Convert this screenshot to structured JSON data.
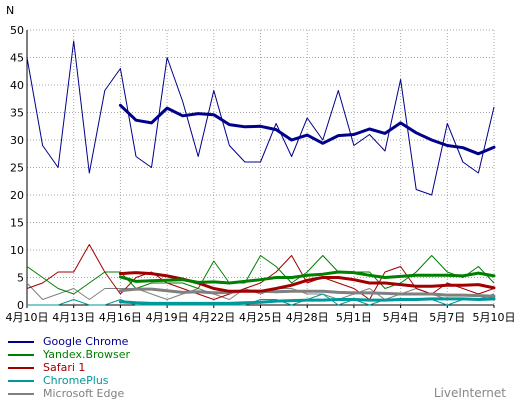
{
  "chart_data": {
    "type": "line",
    "ylabel": "N",
    "ylim": [
      0,
      50
    ],
    "yticks": [
      0,
      5,
      10,
      15,
      20,
      25,
      30,
      35,
      40,
      45,
      50
    ],
    "grid": true,
    "legend_position": "bottom-left",
    "x": [
      "4月10日",
      "4月11日",
      "4月12日",
      "4月13日",
      "4月14日",
      "4月15日",
      "4月16日",
      "4月17日",
      "4月18日",
      "4月19日",
      "4月20日",
      "4月21日",
      "4月22日",
      "4月23日",
      "4月24日",
      "4月25日",
      "4月26日",
      "4月27日",
      "4月28日",
      "4月29日",
      "4月30日",
      "5月1日",
      "5月2日",
      "5月3日",
      "5月4日",
      "5月5日",
      "5月6日",
      "5月7日",
      "5月8日",
      "5月9日",
      "5月10日"
    ],
    "xtick_labels": [
      "4月10日",
      "4月13日",
      "4月16日",
      "4月19日",
      "4月22日",
      "4月25日",
      "4月28日",
      "5月1日",
      "5月4日",
      "5月7日",
      "5月10日"
    ],
    "series": [
      {
        "name": "Google Chrome",
        "color": "#00008b",
        "values": [
          45,
          29,
          25,
          48,
          24,
          39,
          43,
          27,
          25,
          45,
          37,
          27,
          39,
          29,
          26,
          26,
          33,
          27,
          34,
          30,
          39,
          29,
          31,
          28,
          41,
          21,
          20,
          33,
          26,
          24,
          36
        ],
        "smoothed": [
          null,
          null,
          null,
          null,
          null,
          null,
          36.3,
          33.6,
          33.1,
          35.8,
          34.4,
          34.8,
          34.6,
          32.8,
          32.4,
          32.5,
          31.9,
          30.0,
          30.9,
          29.4,
          30.8,
          31.0,
          32.0,
          31.2,
          33.1,
          31.3,
          30.0,
          29.0,
          28.6,
          27.5,
          28.7
        ]
      },
      {
        "name": "Yandex.Browser",
        "color": "#008000",
        "values": [
          7,
          5,
          3,
          2,
          4,
          6,
          6,
          3,
          4,
          4,
          4,
          3,
          8,
          4,
          4,
          9,
          7,
          4,
          6,
          9,
          6,
          6,
          6,
          3,
          4,
          6,
          9,
          6,
          5,
          7,
          4
        ],
        "smoothed": [
          null,
          null,
          null,
          null,
          null,
          null,
          5.1,
          4.3,
          4.4,
          4.5,
          4.6,
          4.1,
          4.2,
          4.0,
          4.3,
          4.6,
          5.0,
          5.0,
          5.4,
          5.6,
          6.0,
          5.9,
          5.4,
          5.0,
          5.2,
          5.4,
          5.4,
          5.4,
          5.3,
          5.8,
          5.3
        ]
      },
      {
        "name": "Safari 1",
        "color": "#a00000",
        "values": [
          3,
          4,
          6,
          6,
          11,
          6,
          2,
          5,
          6,
          4,
          3,
          2,
          1,
          2,
          3,
          4,
          6,
          9,
          4,
          5,
          4,
          3,
          1,
          6,
          7,
          3,
          2,
          4,
          3,
          2,
          3
        ],
        "smoothed": [
          null,
          null,
          null,
          null,
          null,
          null,
          5.7,
          5.9,
          5.7,
          5.3,
          4.7,
          4.0,
          3.0,
          2.5,
          2.5,
          2.5,
          3.0,
          3.6,
          4.5,
          5.0,
          5.0,
          4.6,
          4.0,
          4.0,
          3.7,
          3.4,
          3.4,
          3.6,
          3.6,
          3.7,
          3.1
        ]
      },
      {
        "name": "ChromePlus",
        "color": "#009999",
        "values": [
          0,
          0,
          0,
          1,
          0,
          0,
          1,
          0,
          0,
          0,
          0,
          0,
          0,
          0,
          0,
          1,
          1,
          0,
          1,
          2,
          0,
          1,
          0,
          1,
          1,
          1,
          1,
          0,
          1,
          1,
          2
        ],
        "smoothed": [
          null,
          null,
          null,
          null,
          null,
          null,
          0.6,
          0.4,
          0.3,
          0.3,
          0.3,
          0.3,
          0.3,
          0.3,
          0.4,
          0.5,
          0.7,
          0.8,
          0.9,
          0.9,
          1.0,
          1.0,
          0.9,
          0.9,
          1.0,
          1.0,
          1.1,
          1.1,
          1.1,
          1.0,
          1.1
        ]
      },
      {
        "name": "Microsoft Edge",
        "color": "#808080",
        "values": [
          4,
          1,
          2,
          3,
          1,
          3,
          3,
          3,
          2,
          1,
          2,
          3,
          2,
          1,
          3,
          2,
          3,
          3,
          2,
          2,
          1,
          2,
          3,
          1,
          2,
          3,
          2,
          1,
          1,
          1,
          2
        ],
        "smoothed": [
          null,
          null,
          null,
          null,
          null,
          null,
          2.6,
          2.9,
          2.9,
          2.6,
          2.3,
          2.4,
          2.2,
          2.3,
          2.6,
          2.5,
          2.4,
          2.5,
          2.5,
          2.5,
          2.3,
          2.2,
          2.2,
          2.1,
          2.0,
          2.0,
          2.0,
          1.8,
          1.8,
          1.7,
          1.6
        ]
      }
    ]
  },
  "watermark": "LiveInternet"
}
